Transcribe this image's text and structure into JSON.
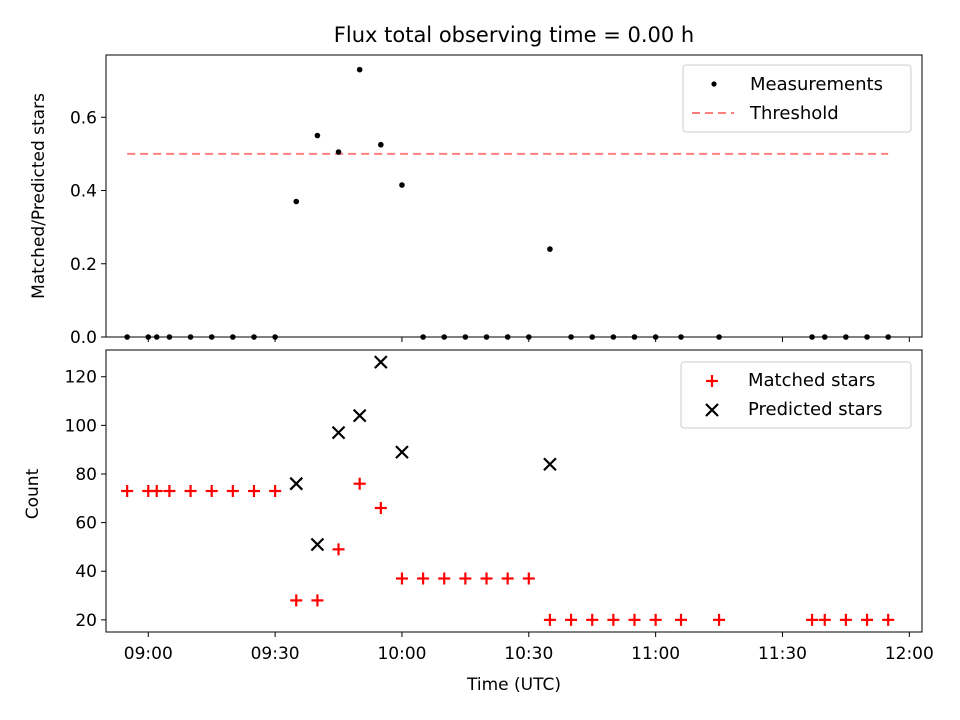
{
  "chart_data": [
    {
      "type": "scatter",
      "title": "Flux total observing time = 0.00 h",
      "xlabel": "",
      "ylabel": "Matched/Predicted stars",
      "ylim": [
        0,
        0.77
      ],
      "yticks": [
        "0.0",
        "0.2",
        "0.4",
        "0.6"
      ],
      "ytick_values": [
        0,
        0.2,
        0.4,
        0.6
      ],
      "xlim": [
        "08:50",
        "12:03"
      ],
      "xtick_values": [
        "09:00",
        "09:30",
        "10:00",
        "10:30",
        "11:00",
        "11:30",
        "12:00"
      ],
      "legend": "top-right",
      "series": [
        {
          "name": "Measurements",
          "marker": "dot",
          "color": "#000000",
          "x": [
            "08:55",
            "09:00",
            "09:02",
            "09:05",
            "09:10",
            "09:15",
            "09:20",
            "09:25",
            "09:30",
            "09:35",
            "09:40",
            "09:45",
            "09:50",
            "09:55",
            "10:00",
            "10:05",
            "10:10",
            "10:15",
            "10:20",
            "10:25",
            "10:30",
            "10:35",
            "10:40",
            "10:45",
            "10:50",
            "10:55",
            "11:00",
            "11:06",
            "11:15",
            "11:37",
            "11:40",
            "11:45",
            "11:50",
            "11:55"
          ],
          "y": [
            0,
            0,
            0,
            0,
            0,
            0,
            0,
            0,
            0,
            0.37,
            0.55,
            0.505,
            0.73,
            0.525,
            0.415,
            0,
            0,
            0,
            0,
            0,
            0,
            0.24,
            0,
            0,
            0,
            0,
            0,
            0,
            0,
            0,
            0,
            0,
            0,
            0
          ]
        },
        {
          "name": "Threshold",
          "style": "dashed",
          "color": "#ff7f7f",
          "x": [
            "08:55",
            "11:55"
          ],
          "y": [
            0.5,
            0.5
          ]
        }
      ]
    },
    {
      "type": "scatter",
      "title": "",
      "xlabel": "Time (UTC)",
      "ylabel": "Count",
      "ylim": [
        15,
        131
      ],
      "yticks": [
        "20",
        "40",
        "60",
        "80",
        "100",
        "120"
      ],
      "ytick_values": [
        20,
        40,
        60,
        80,
        100,
        120
      ],
      "xlim": [
        "08:50",
        "12:03"
      ],
      "xticks": [
        "09:00",
        "09:30",
        "10:00",
        "10:30",
        "11:00",
        "11:30",
        "12:00"
      ],
      "legend": "top-right",
      "series": [
        {
          "name": "Matched stars",
          "marker": "plus",
          "color": "#ff0000",
          "x": [
            "08:55",
            "09:00",
            "09:02",
            "09:05",
            "09:10",
            "09:15",
            "09:20",
            "09:25",
            "09:30",
            "09:35",
            "09:40",
            "09:45",
            "09:50",
            "09:55",
            "10:00",
            "10:05",
            "10:10",
            "10:15",
            "10:20",
            "10:25",
            "10:30",
            "10:35",
            "10:40",
            "10:45",
            "10:50",
            "10:55",
            "11:00",
            "11:06",
            "11:15",
            "11:37",
            "11:40",
            "11:45",
            "11:50",
            "11:55"
          ],
          "y": [
            73,
            73,
            73,
            73,
            73,
            73,
            73,
            73,
            73,
            28,
            28,
            49,
            76,
            66,
            37,
            37,
            37,
            37,
            37,
            37,
            37,
            20,
            20,
            20,
            20,
            20,
            20,
            20,
            20,
            20,
            20,
            20,
            20,
            20
          ]
        },
        {
          "name": "Predicted stars",
          "marker": "x",
          "color": "#000000",
          "x": [
            "09:35",
            "09:40",
            "09:45",
            "09:50",
            "09:55",
            "10:00",
            "10:35"
          ],
          "y": [
            76,
            51,
            97,
            104,
            126,
            89,
            84
          ]
        }
      ]
    }
  ]
}
